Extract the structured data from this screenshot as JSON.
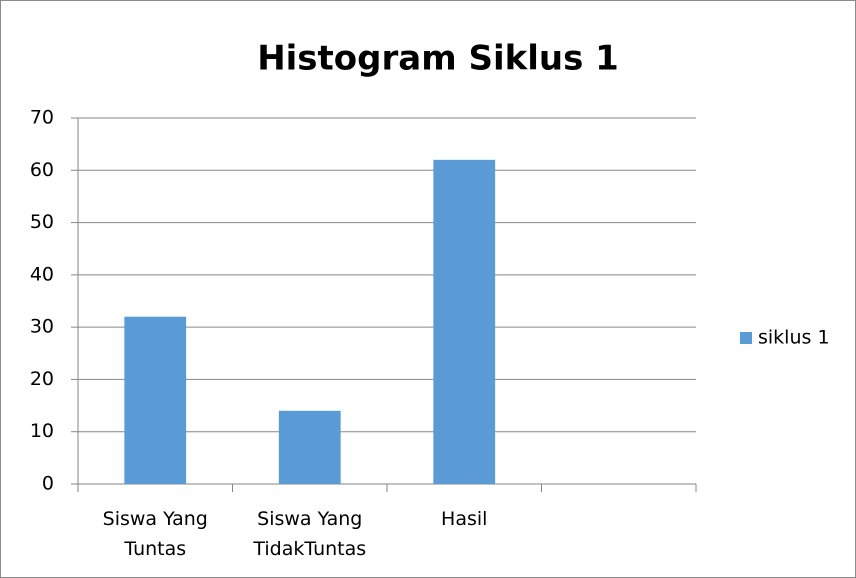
{
  "chart_data": {
    "type": "bar",
    "title": "Histogram Siklus 1",
    "categories": [
      "Siswa Yang Tuntas",
      "Siswa Yang TidakTuntas",
      "Hasil",
      null
    ],
    "series": [
      {
        "name": "siklus 1",
        "color": "#5b9bd5",
        "values": [
          32,
          14,
          62,
          null
        ]
      }
    ],
    "ylim": [
      0,
      70
    ],
    "yticks": [
      0,
      10,
      20,
      30,
      40,
      50,
      60,
      70
    ],
    "grid": true,
    "legend": "right"
  }
}
